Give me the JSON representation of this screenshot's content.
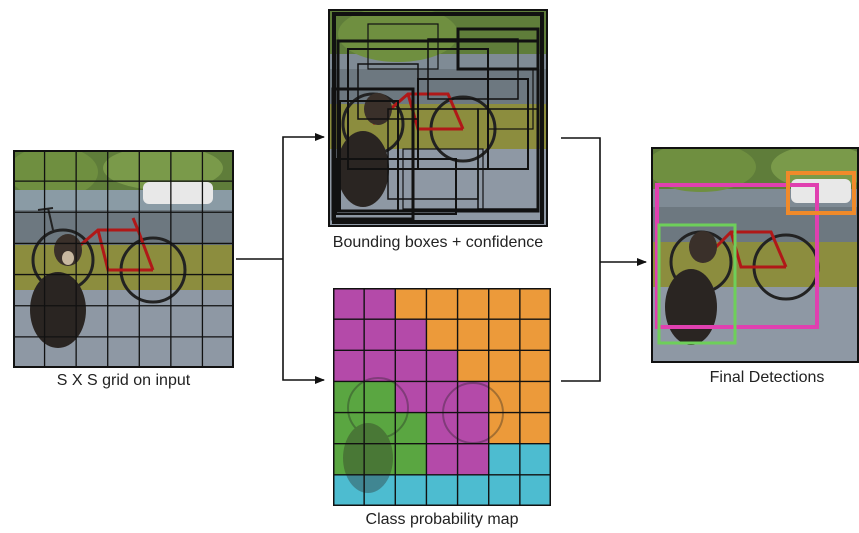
{
  "captions": {
    "grid": "S X S grid on input",
    "boxes": "Bounding boxes + confidence",
    "classmap": "Class probability map",
    "final": "Final Detections"
  },
  "class_colors": {
    "magenta": "#b44aa9",
    "orange": "#ec9a3a",
    "green": "#5aa641",
    "cyan": "#4dbcd0"
  },
  "class_map": [
    [
      "magenta",
      "magenta",
      "orange",
      "orange",
      "orange",
      "orange",
      "orange"
    ],
    [
      "magenta",
      "magenta",
      "magenta",
      "orange",
      "orange",
      "orange",
      "orange"
    ],
    [
      "magenta",
      "magenta",
      "magenta",
      "magenta",
      "orange",
      "orange",
      "orange"
    ],
    [
      "green",
      "green",
      "magenta",
      "magenta",
      "magenta",
      "orange",
      "orange"
    ],
    [
      "green",
      "green",
      "green",
      "magenta",
      "magenta",
      "orange",
      "orange"
    ],
    [
      "green",
      "green",
      "green",
      "magenta",
      "magenta",
      "cyan",
      "cyan"
    ],
    [
      "cyan",
      "cyan",
      "cyan",
      "cyan",
      "cyan",
      "cyan",
      "cyan"
    ]
  ],
  "detection_colors": {
    "dog": "#6ecf5a",
    "bicycle": "#e040b0",
    "car": "#f08a2a"
  }
}
